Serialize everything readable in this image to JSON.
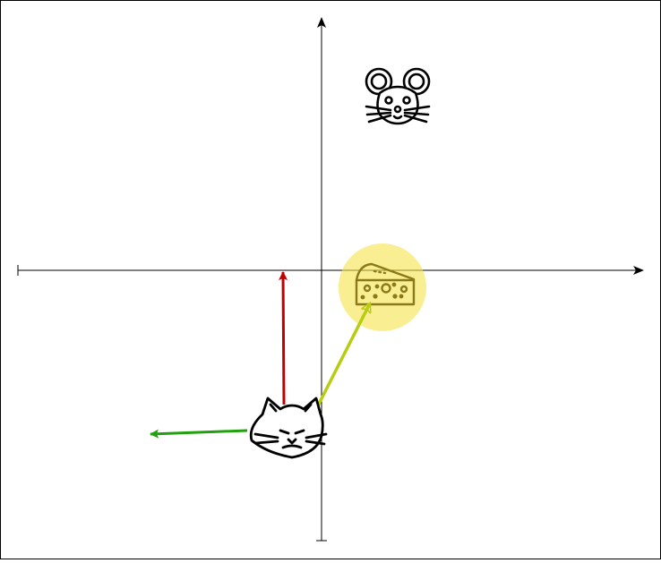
{
  "colors": {
    "axis": "#000000",
    "red_arrow": "#c00000",
    "green_arrow": "#22a010",
    "yellowgreen_arrow": "#b8cc10",
    "cheese_highlight": "#f5e24a",
    "cheese_icon": "#8a7a1a",
    "icon_stroke": "#000000"
  },
  "icons": {
    "mouse": "mouse-icon",
    "cheese": "cheese-icon",
    "cat": "cat-icon"
  },
  "arrows": [
    {
      "name": "red-arrow",
      "color_key": "red_arrow"
    },
    {
      "name": "green-arrow",
      "color_key": "green_arrow"
    },
    {
      "name": "yellowgreen-arrow",
      "color_key": "yellowgreen_arrow"
    }
  ]
}
